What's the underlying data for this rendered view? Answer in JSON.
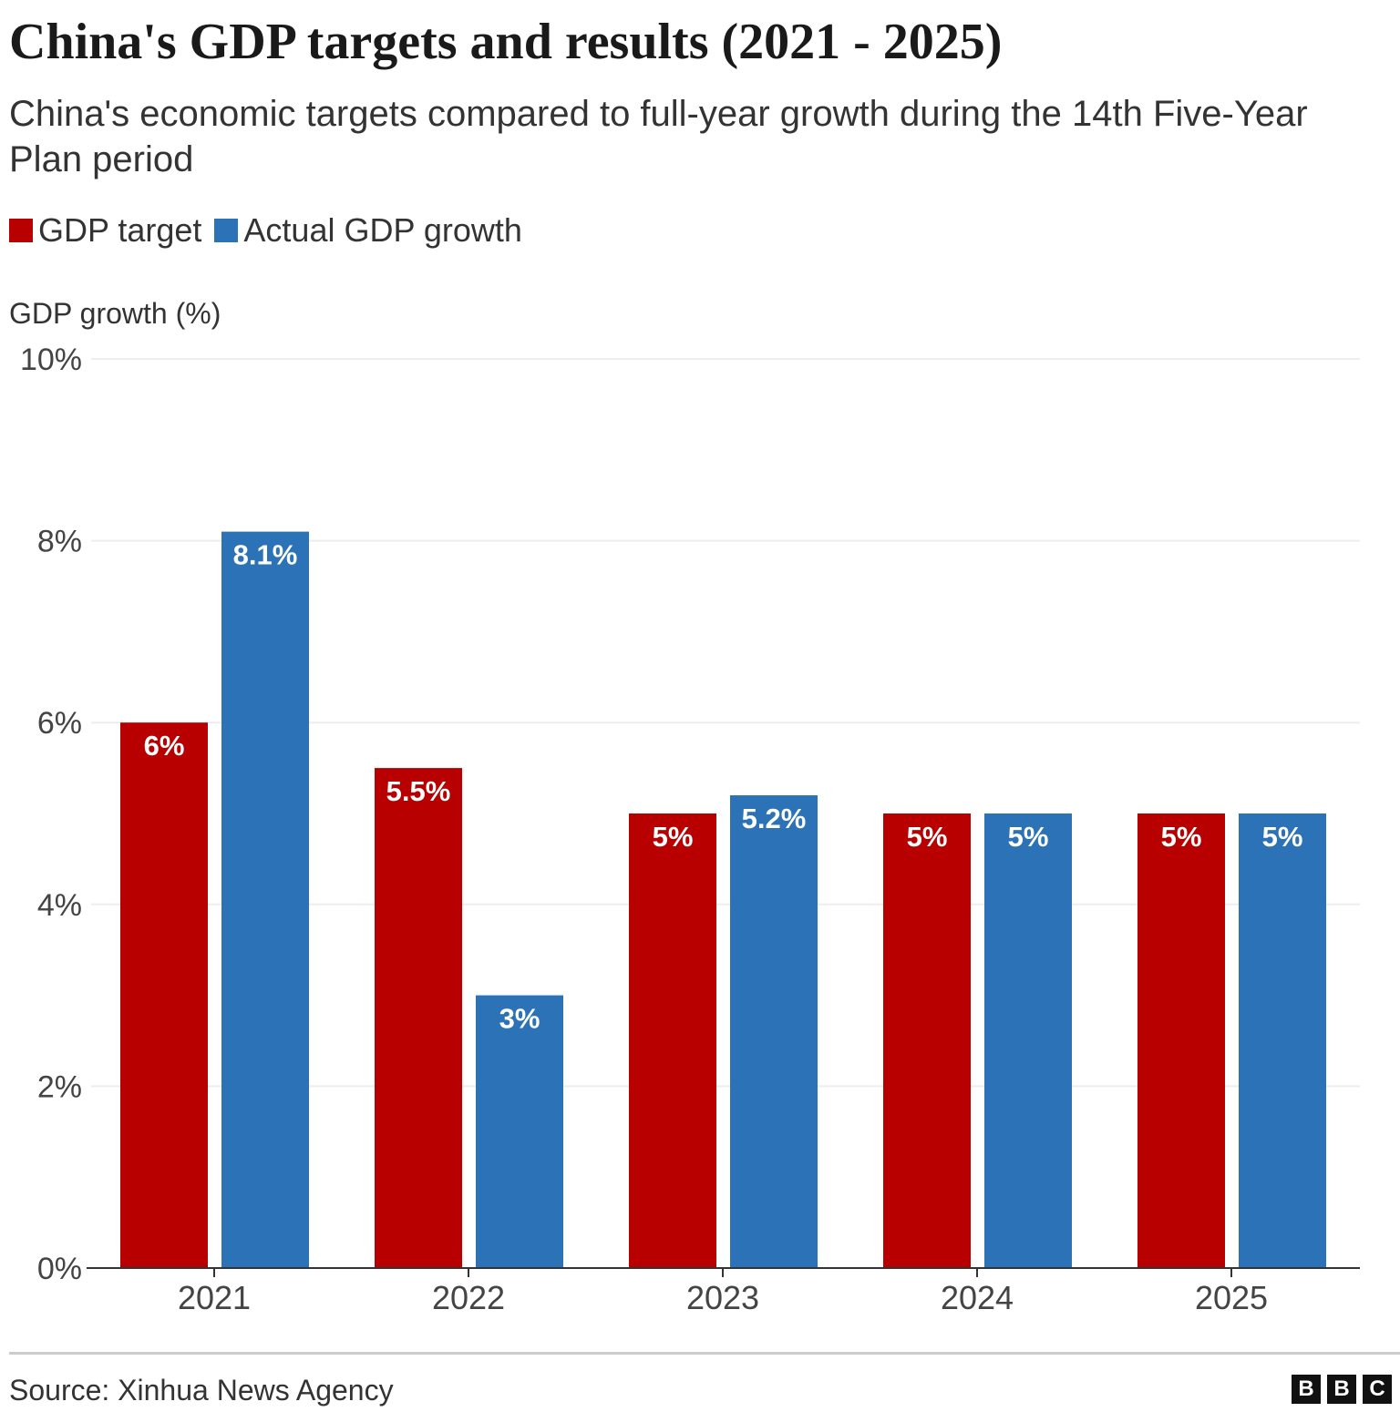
{
  "chart_data": {
    "type": "bar",
    "title": "China's GDP targets and results (2021 - 2025)",
    "subtitle": "China's economic targets compared to full-year growth during the 14th Five-Year Plan period",
    "ylabel": "GDP growth (%)",
    "xlabel": "",
    "ylim": [
      0,
      10
    ],
    "yticks": [
      "0%",
      "2%",
      "4%",
      "6%",
      "8%",
      "10%"
    ],
    "ytick_values": [
      0,
      2,
      4,
      6,
      8,
      10
    ],
    "grid": true,
    "legend_placement": "top-left",
    "categories": [
      "2021",
      "2022",
      "2023",
      "2024",
      "2025"
    ],
    "series": [
      {
        "name": "GDP target",
        "color": "#b80000",
        "values": [
          6,
          5.5,
          5,
          5,
          5
        ],
        "labels": [
          "6%",
          "5.5%",
          "5%",
          "5%",
          "5%"
        ]
      },
      {
        "name": "Actual GDP growth",
        "color": "#2c72b6",
        "values": [
          8.1,
          3,
          5.2,
          5,
          5
        ],
        "labels": [
          "8.1%",
          "3%",
          "5.2%",
          "5%",
          "5%"
        ]
      }
    ]
  },
  "footer": {
    "source": "Source: Xinhua News Agency",
    "logo": "BBC"
  }
}
